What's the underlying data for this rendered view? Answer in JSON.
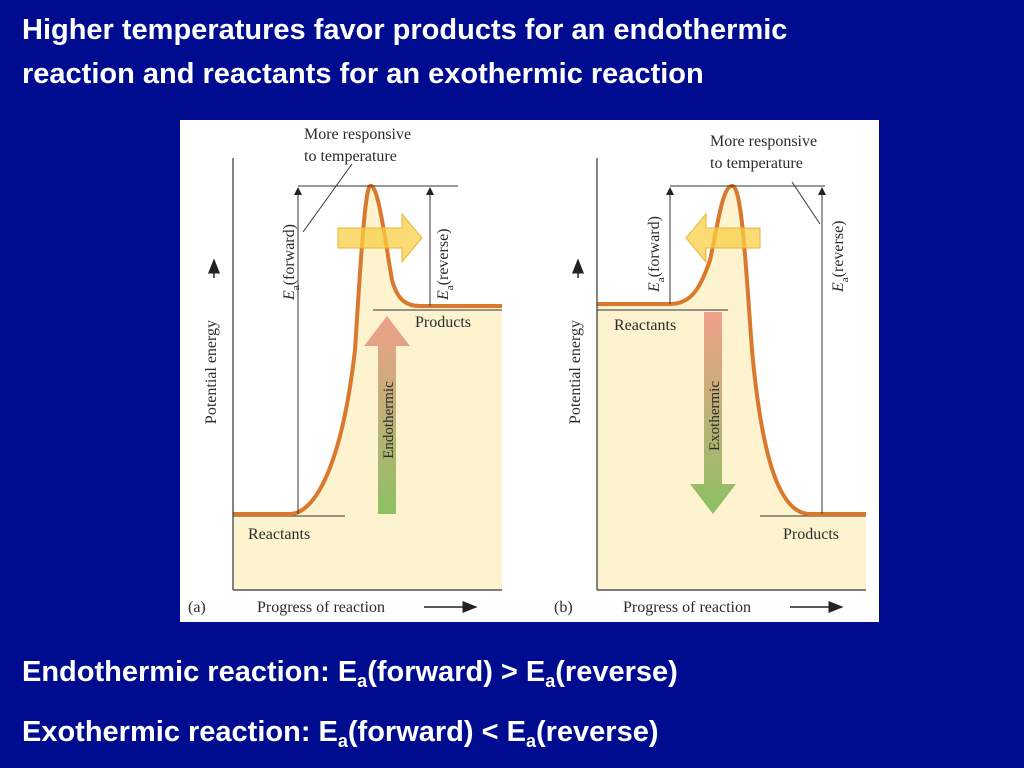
{
  "slide": {
    "title_line1": "Higher temperatures favor products for an endothermic",
    "title_line2": "reaction and reactants for an exothermic reaction"
  },
  "diagram": {
    "panel_a": {
      "panel_label": "(a)",
      "annotation_line1": "More responsive",
      "annotation_line2": "to temperature",
      "ea_forward_symbol": "E",
      "ea_forward_sub": "a",
      "ea_forward_text": "(forward)",
      "ea_reverse_symbol": "E",
      "ea_reverse_sub": "a",
      "ea_reverse_text": "(reverse)",
      "y_axis_label": "Potential energy",
      "x_axis_label": "Progress of reaction",
      "low_level_label": "Reactants",
      "high_level_label": "Products",
      "reaction_arrow_label": "Endothermic"
    },
    "panel_b": {
      "panel_label": "(b)",
      "annotation_line1": "More responsive",
      "annotation_line2": "to temperature",
      "ea_forward_symbol": "E",
      "ea_forward_sub": "a",
      "ea_forward_text": "(forward)",
      "ea_reverse_symbol": "E",
      "ea_reverse_sub": "a",
      "ea_reverse_text": "(reverse)",
      "y_axis_label": "Potential energy",
      "x_axis_label": "Progress of reaction",
      "high_level_label": "Reactants",
      "low_level_label": "Products",
      "reaction_arrow_label": "Exothermic"
    },
    "colors": {
      "curve": "#d9792e",
      "fill": "#fdf3cf",
      "shift_arrow": "#f8cf45",
      "endothermic_arrow_top": "#f0a08a",
      "arrow_green": "#8cc063"
    }
  },
  "footer": {
    "line1_pre": "Endothermic reaction: E",
    "line1_sub1": "a",
    "line1_mid": "(forward) > E",
    "line1_sub2": "a",
    "line1_post": "(reverse)",
    "line2_pre": "Exothermic reaction: E",
    "line2_sub1": "a",
    "line2_mid": "(forward) < E",
    "line2_sub2": "a",
    "line2_post": "(reverse)"
  }
}
